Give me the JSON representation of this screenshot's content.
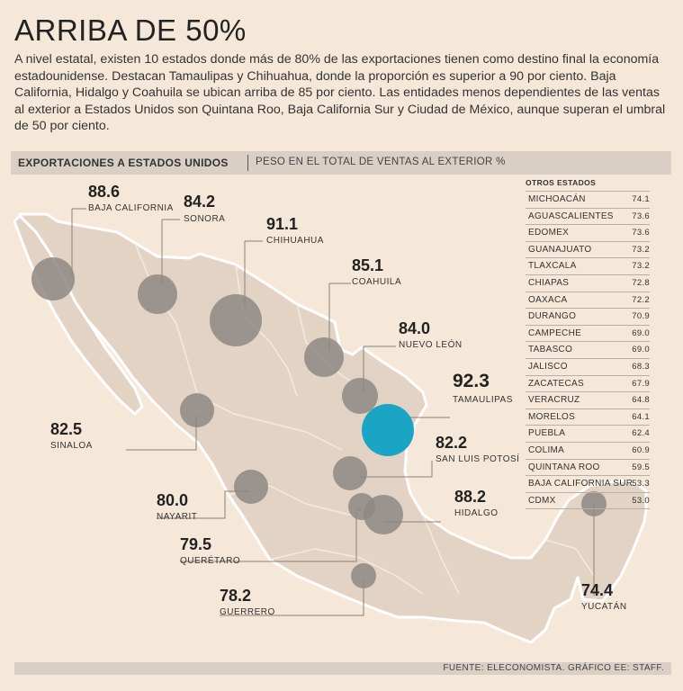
{
  "title": "ARRIBA DE 50%",
  "intro": "A nivel estatal, existen 10 estados donde más de 80% de las exportaciones tienen como destino final la economía estadounidense. Destacan Tamaulipas y Chihuahua, donde la proporción es superior a 90 por ciento. Baja California, Hidalgo y Coahuila se ubican arriba de 85 por ciento. Las entidades menos dependientes de las ventas al exterior a Estados Unidos son Quintana Roo, Baja California Sur y Ciudad de México, aunque superan el umbral de 50 por ciento.",
  "section": {
    "label": "EXPORTACIONES A ESTADOS UNIDOS",
    "sublabel": "PESO EN EL TOTAL DE VENTAS AL EXTERIOR %"
  },
  "colors": {
    "highlight": "#1aa5c4",
    "bubble": "#8e8782",
    "land": "#e3d3c5",
    "sea": "#f6e8d8"
  },
  "states": [
    {
      "id": "baja-california",
      "name": "BAJA CALIFORNIA",
      "value": "88.6"
    },
    {
      "id": "sonora",
      "name": "SONORA",
      "value": "84.2"
    },
    {
      "id": "chihuahua",
      "name": "CHIHUAHUA",
      "value": "91.1"
    },
    {
      "id": "coahuila",
      "name": "COAHUILA",
      "value": "85.1"
    },
    {
      "id": "nuevo-leon",
      "name": "NUEVO LEÓN",
      "value": "84.0"
    },
    {
      "id": "tamaulipas",
      "name": "TAMAULIPAS",
      "value": "92.3"
    },
    {
      "id": "sinaloa",
      "name": "SINALOA",
      "value": "82.5"
    },
    {
      "id": "san-luis-potosi",
      "name": "SAN LUIS POTOSÍ",
      "value": "82.2"
    },
    {
      "id": "nayarit",
      "name": "NAYARIT",
      "value": "80.0"
    },
    {
      "id": "hidalgo",
      "name": "HIDALGO",
      "value": "88.2"
    },
    {
      "id": "queretaro",
      "name": "QUERÉTARO",
      "value": "79.5"
    },
    {
      "id": "guerrero",
      "name": "GUERRERO",
      "value": "78.2"
    },
    {
      "id": "yucatan",
      "name": "YUCATÁN",
      "value": "74.4"
    }
  ],
  "others": {
    "header": "OTROS ESTADOS",
    "rows": [
      {
        "name": "MICHOACÁN",
        "value": "74.1"
      },
      {
        "name": "AGUASCALIENTES",
        "value": "73.6"
      },
      {
        "name": "EDOMEX",
        "value": "73.6"
      },
      {
        "name": "GUANAJUATO",
        "value": "73.2"
      },
      {
        "name": "TLAXCALA",
        "value": "73.2"
      },
      {
        "name": "CHIAPAS",
        "value": "72.8"
      },
      {
        "name": "OAXACA",
        "value": "72.2"
      },
      {
        "name": "DURANGO",
        "value": "70.9"
      },
      {
        "name": "CAMPECHE",
        "value": "69.0"
      },
      {
        "name": "TABASCO",
        "value": "69.0"
      },
      {
        "name": "JALISCO",
        "value": "68.3"
      },
      {
        "name": "ZACATECAS",
        "value": "67.9"
      },
      {
        "name": "VERACRUZ",
        "value": "64.8"
      },
      {
        "name": "MORELOS",
        "value": "64.1"
      },
      {
        "name": "PUEBLA",
        "value": "62.4"
      },
      {
        "name": "COLIMA",
        "value": "60.9"
      },
      {
        "name": "QUINTANA ROO",
        "value": "59.5"
      },
      {
        "name": "BAJA CALIFORNIA SUR",
        "value": "53.3"
      },
      {
        "name": "CDMX",
        "value": "53.0"
      }
    ]
  },
  "footer": "FUENTE: ELECONOMISTA. GRÁFICO EE: STAFF."
}
